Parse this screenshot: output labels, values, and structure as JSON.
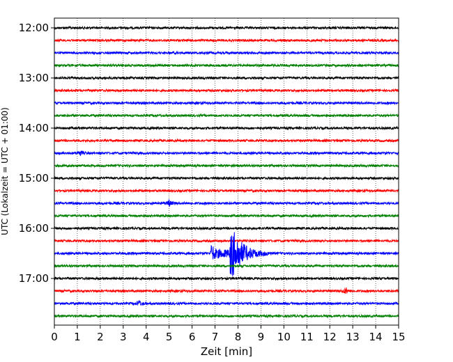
{
  "chart_data": {
    "type": "line",
    "title": "",
    "xlabel": "Zeit  [min]",
    "ylabel": "UTC (Lokalzeit = UTC + 01:00)",
    "xlim": [
      0,
      15
    ],
    "x_ticks": [
      "0",
      "1",
      "2",
      "3",
      "4",
      "5",
      "6",
      "7",
      "8",
      "9",
      "10",
      "11",
      "12",
      "13",
      "14",
      "15"
    ],
    "y_ticks": [
      {
        "label": "12:00",
        "row": 0
      },
      {
        "label": "13:00",
        "row": 4
      },
      {
        "label": "14:00",
        "row": 8
      },
      {
        "label": "15:00",
        "row": 12
      },
      {
        "label": "16:00",
        "row": 16
      },
      {
        "label": "17:00",
        "row": 20
      }
    ],
    "trace_interval_min": 15,
    "start_time_utc": "12:00",
    "trace_count": 24,
    "trace_colors": [
      "#000000",
      "#ff0000",
      "#0000ff",
      "#008000"
    ],
    "vertical_grid": "dotted, every minute",
    "notable_events": [
      {
        "trace_start_utc": "16:30",
        "onset_min": 6.8,
        "peak_min": 7.8,
        "end_min": 9.5,
        "description": "large amplitude burst"
      },
      {
        "trace_start_utc": "15:30",
        "time_min": 5.0,
        "description": "small burst"
      },
      {
        "trace_start_utc": "17:30",
        "time_min": 3.7,
        "description": "small burst"
      },
      {
        "trace_start_utc": "17:15",
        "time_min": 12.7,
        "description": "small burst"
      },
      {
        "trace_start_utc": "14:30",
        "time_min": 1.1,
        "description": "small burst"
      }
    ]
  }
}
